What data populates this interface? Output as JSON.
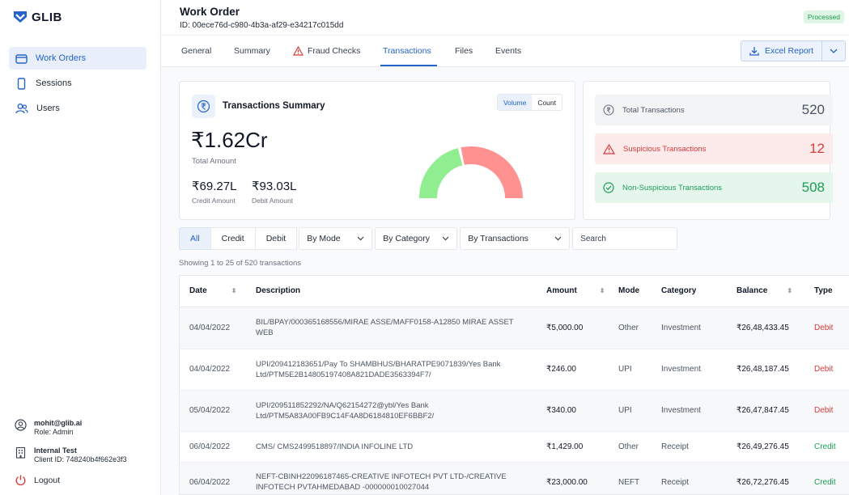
{
  "brand": {
    "name": "GLIB"
  },
  "sidebar": {
    "items": [
      {
        "label": "Work Orders",
        "icon": "folder-icon"
      },
      {
        "label": "Sessions",
        "icon": "phone-icon"
      },
      {
        "label": "Users",
        "icon": "users-icon"
      }
    ],
    "user": {
      "email": "mohit@glib.ai",
      "role": "Role: Admin"
    },
    "client": {
      "name": "Internal Test",
      "id": "Client ID: 748240b4f662e3f3"
    },
    "logout": "Logout"
  },
  "header": {
    "title": "Work Order",
    "id": "ID: 00ece76d-c980-4b3a-af29-e34217c015dd",
    "status": "Processed"
  },
  "tabs": [
    {
      "label": "General"
    },
    {
      "label": "Summary"
    },
    {
      "label": "Fraud Checks"
    },
    {
      "label": "Transactions"
    },
    {
      "label": "Files"
    },
    {
      "label": "Events"
    }
  ],
  "excel_report": "Excel Report",
  "summary": {
    "title": "Transactions Summary",
    "toggle": [
      "Volume",
      "Count"
    ],
    "total_amount": "₹1.62Cr",
    "total_label": "Total Amount",
    "credit_amount": "₹69.27L",
    "credit_label": "Credit Amount",
    "debit_amount": "₹93.03L",
    "debit_label": "Debit Amount",
    "gauge": {
      "credit_fraction": 0.4277,
      "credit_color": "#90ee90",
      "debit_color": "#ff9191"
    }
  },
  "stats": {
    "total": {
      "label": "Total Transactions",
      "value": "520"
    },
    "suspicious": {
      "label": "Suspicious Transactions",
      "value": "12"
    },
    "non_suspicious": {
      "label": "Non-Suspicious Transactions",
      "value": "508"
    }
  },
  "filters": {
    "all": "All",
    "credit": "Credit",
    "debit": "Debit",
    "mode": "By Mode",
    "category": "By Category",
    "transactions": "By Transactions",
    "search_placeholder": "Search"
  },
  "showing": "Showing 1 to 25 of 520 transactions",
  "table": {
    "headers": [
      "Date",
      "Description",
      "Amount",
      "Mode",
      "Category",
      "Balance",
      "Type"
    ],
    "rows": [
      {
        "date": "04/04/2022",
        "description": "BIL/BPAY/000365168556/MIRAE ASSE/MAFF0158-A12850 MIRAE ASSET WEB",
        "amount": "₹5,000.00",
        "mode": "Other",
        "category": "Investment",
        "balance": "₹26,48,433.45",
        "type": "Debit"
      },
      {
        "date": "04/04/2022",
        "description": "UPI/209412183651/Pay To SHAMBHUS/BHARATPE9071839/Yes Bank Ltd/PTM5E2B14805197408A821DADE3563394F7/",
        "amount": "₹246.00",
        "mode": "UPI",
        "category": "Investment",
        "balance": "₹26,48,187.45",
        "type": "Debit"
      },
      {
        "date": "05/04/2022",
        "description": "UPI/209511852292/NA/Q62154272@ybl/Yes Bank Ltd/PTM5A83A00FB9C14F4A8D6184810EF6BBF2/",
        "amount": "₹340.00",
        "mode": "UPI",
        "category": "Investment",
        "balance": "₹26,47,847.45",
        "type": "Debit"
      },
      {
        "date": "06/04/2022",
        "description": "CMS/ CMS2499518897/INDIA INFOLINE LTD",
        "amount": "₹1,429.00",
        "mode": "Other",
        "category": "Receipt",
        "balance": "₹26,49,276.45",
        "type": "Credit"
      },
      {
        "date": "06/04/2022",
        "description": "NEFT-CBINH22096187465-CREATIVE INFOTECH PVT LTD-/CREATIVE INFOTECH PVTAHMEDABAD -000000010027044",
        "amount": "₹23,000.00",
        "mode": "NEFT",
        "category": "Receipt",
        "balance": "₹26,72,276.45",
        "type": "Credit"
      }
    ]
  }
}
